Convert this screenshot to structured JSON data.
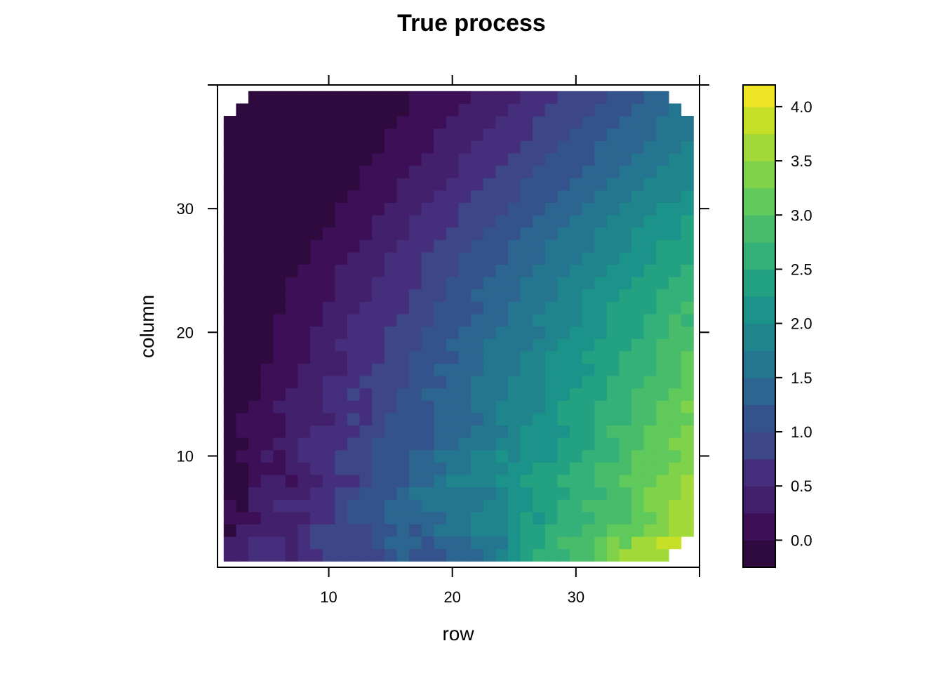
{
  "chart_data": {
    "type": "heatmap",
    "title": "True process",
    "xlabel": "row",
    "ylabel": "column",
    "xlim": [
      1,
      40
    ],
    "ylim": [
      1,
      40
    ],
    "x_ticks": [
      10,
      20,
      30,
      40
    ],
    "x_tick_labels": [
      "10",
      "20",
      "30",
      ""
    ],
    "y_ticks": [
      10,
      20,
      30,
      40
    ],
    "y_tick_labels": [
      "10",
      "20",
      "30",
      ""
    ],
    "grid": false,
    "colorbar": {
      "position": "right",
      "range": [
        -0.25,
        4.2
      ],
      "levels": [
        -0.25,
        0.0,
        0.25,
        0.5,
        0.75,
        1.0,
        1.25,
        1.5,
        1.75,
        2.0,
        2.25,
        2.5,
        2.75,
        3.0,
        3.25,
        3.5,
        3.75,
        4.0,
        4.2
      ],
      "colors": [
        "#2f0a3f",
        "#3c0f57",
        "#43206b",
        "#452f7c",
        "#3d4788",
        "#34528c",
        "#2c658f",
        "#24758f",
        "#1f848c",
        "#1b938a",
        "#23a282",
        "#34b079",
        "#49bc6b",
        "#5fc95b",
        "#80d24a",
        "#a1da38",
        "#c6df27",
        "#f0e627"
      ],
      "ticks": [
        0.0,
        0.5,
        1.0,
        1.5,
        2.0,
        2.5,
        3.0,
        3.5,
        4.0
      ],
      "tick_labels": [
        "0.0",
        "0.5",
        "1.0",
        "1.5",
        "2.0",
        "2.5",
        "3.0",
        "3.5",
        "4.0"
      ]
    },
    "grid_data": {
      "nx": 38,
      "ny": 39,
      "x_start": 2,
      "y_start": 2,
      "rows": [
        "0.45,0.46,0.54,0.60,0.52,0.49,0.66,0.72,0.86,0.85,0.95,0.85,0.97,1.14,1.31,1.16,1.22,1.24,1.29,1.33,1.45,1.58,1.75,2.12,2.26,2.50,2.65,2.67,2.77,2.96,3.20,3.29,3.54,3.51,3.65,3.71,,",
        "0.47,0.42,0.58,0.54,0.56,0.43,0.69,0.82,0.83,0.93,0.79,0.95,1.09,1.25,1.36,1.45,1.24,1.29,1.42,1.48,1.65,1.54,1.69,2.11,2.31,2.39,2.68,2.80,2.92,2.91,3.01,3.28,3.18,3.54,3.67,3.75,3.84,",
        "-0.12,0.27,0.45,0.45,0.40,0.41,0.62,0.76,0.84,0.86,0.97,0.99,1.07,1.24,1.38,1.24,1.45,1.57,1.53,1.71,1.79,1.82,1.85,2.05,2.25,2.31,2.50,2.58,2.70,2.81,2.84,3.01,3.15,3.13,3.26,3.44,3.66,3.58",
        "0.22,0.20,0.23,0.25,0.27,0.25,0.43,0.57,0.74,0.79,1.00,1.12,1.19,1.41,1.43,1.40,1.37,1.48,1.59,1.71,1.77,1.92,1.91,2.16,2.27,2.21,2.28,2.54,2.55,2.62,2.86,2.83,2.95,3.08,3.20,3.34,3.55,3.64",
        "0.01,-0.02,0.31,0.38,0.52,0.53,0.53,0.64,0.71,0.95,1.09,1.02,1.22,1.25,1.44,1.41,1.58,1.63,1.67,1.70,1.72,1.96,1.93,2.02,2.16,2.33,2.38,2.51,2.57,2.77,2.87,2.92,2.89,3.19,3.35,3.46,3.56,3.71",
        "-0.10,-0.11,0.29,0.31,0.45,0.39,0.48,0.73,0.71,0.77,0.93,1.04,1.11,1.15,1.38,1.51,1.58,1.59,1.67,1.73,1.74,1.72,1.96,2.10,2.21,2.39,2.35,2.34,2.52,2.66,2.69,2.77,2.98,3.11,3.27,3.31,3.37,3.66",
        "-0.15,-0.06,0.11,0.29,0.34,0.21,0.38,0.41,0.55,0.70,0.70,0.95,1.03,1.12,1.19,1.28,1.33,1.60,1.75,1.81,1.75,1.85,2.05,2.06,2.34,2.29,2.45,2.51,2.67,2.63,2.77,2.92,3.06,3.03,3.21,3.33,3.26,3.61",
        "-0.24,-0.08,0.09,0.21,0.22,0.30,0.33,0.58,0.62,0.83,0.86,0.95,1.04,1.09,1.22,1.26,1.41,1.40,1.69,1.66,1.79,1.90,1.87,2.01,2.09,2.31,2.36,2.48,2.51,2.56,2.78,2.79,2.84,3.04,3.16,3.10,3.29,3.47",
        "-0.16,0.06,0.13,0.27,0.24,0.35,0.51,0.53,0.62,0.76,0.92,0.97,1.06,1.14,1.11,1.31,1.40,1.60,1.51,1.54,1.75,1.86,2.02,1.96,2.01,2.13,2.20,2.32,2.46,2.61,2.65,2.74,2.90,3.00,3.09,3.22,3.13,3.42",
        "-0.13,-0.04,0.02,0.13,0.35,0.37,0.53,0.61,0.61,0.70,0.86,0.94,1.12,1.09,1.12,1.21,1.23,1.34,1.37,1.53,1.66,1.69,1.93,1.96,2.11,2.09,2.17,2.33,2.42,2.49,2.59,2.62,2.90,2.95,3.04,3.17,3.28,3.41",
        "-0.06,0.06,0.00,0.13,0.20,0.30,0.39,0.54,0.58,0.59,0.72,0.84,0.92,1.03,1.14,1.18,1.15,1.30,1.43,1.41,1.53,1.62,1.74,1.94,2.00,2.04,2.07,2.22,2.37,2.47,2.54,2.75,2.84,2.86,3.01,3.04,3.16,3.27",
        "-0.12,0.05,0.17,0.06,0.18,0.25,0.28,0.40,0.46,0.65,0.78,0.73,0.93,1.03,1.09,1.21,1.21,1.38,1.45,1.37,1.45,1.64,1.75,1.90,1.90,2.07,2.22,2.27,2.35,2.42,2.52,2.62,2.72,2.86,2.97,3.01,3.13,3.22",
        "-0.14,-0.08,0.08,0.16,0.28,0.31,0.30,0.44,0.63,0.61,0.72,0.74,0.83,0.91,1.08,1.07,1.17,1.27,1.35,1.45,1.59,1.61,1.77,1.77,1.93,1.97,2.10,2.29,2.27,2.45,2.61,2.55,2.66,2.82,2.90,3.01,3.18,3.31",
        "-0.21,-0.11,-0.04,0.09,0.08,0.26,0.42,0.42,0.56,0.65,0.76,0.74,0.87,0.95,1.03,1.05,1.25,1.29,1.33,1.48,1.56,1.59,1.65,1.80,1.87,1.97,2.06,2.09,2.31,2.32,2.36,2.54,2.59,2.78,2.87,2.96,3.03,3.16",
        "-0.12,-0.11,-0.01,0.06,0.06,0.24,0.30,0.33,0.52,0.58,0.70,0.76,0.85,0.95,0.95,1.01,1.18,1.24,1.26,1.31,1.56,1.64,1.71,1.75,1.84,1.97,2.05,2.11,2.20,2.31,2.44,2.51,2.62,2.64,2.79,2.87,2.98,3.06",
        "-0.22,-0.18,-0.06,0.04,0.06,0.14,0.31,0.32,0.38,0.49,0.61,0.69,0.76,0.90,0.93,1.02,1.13,1.29,1.27,1.33,1.46,1.53,1.67,1.72,1.79,1.92,2.08,2.12,2.20,2.21,2.37,2.48,2.64,2.63,2.68,2.84,2.89,3.01",
        "-0.18,-0.17,-0.01,-0.05,0.06,0.07,0.22,0.40,0.43,0.48,0.56,0.65,0.73,0.77,0.91,1.03,1.07,1.10,1.22,1.35,1.42,1.58,1.62,1.70,1.85,1.84,2.00,2.07,2.15,2.33,2.32,2.48,2.50,2.63,2.73,2.75,2.94,3.02",
        "-0.24,-0.21,-0.10,-0.06,0.00,0.20,0.21,0.27,0.37,0.51,0.58,0.56,0.74,0.78,0.84,0.97,1.00,1.16,1.26,1.25,1.40,1.50,1.57,1.62,1.69,1.87,1.91,2.07,2.15,2.17,2.28,2.40,2.48,2.51,2.67,2.77,2.85,2.93",
        "-0.20,-0.19,-0.16,-0.05,0.00,0.03,0.20,0.27,0.38,0.34,0.53,0.52,0.62,0.77,0.85,0.90,1.02,1.04,1.15,1.28,1.34,1.37,1.55,1.66,1.72,1.74,1.85,1.95,2.04,2.13,2.17,2.38,2.42,2.49,2.51,2.65,2.77,2.90",
        "-0.21,-0.22,-0.09,-0.08,0.01,0.09,0.13,0.23,0.37,0.47,0.51,0.53,0.61,0.70,0.83,0.87,0.96,1.01,1.12,1.20,1.27,1.43,1.49,1.64,1.68,1.76,1.81,1.96,1.99,2.08,2.23,2.28,2.31,2.41,2.59,2.63,2.76,2.73",
        "-0.25,-0.23,-0.15,-0.11,-0.02,0.08,0.17,0.19,0.28,0.38,0.41,0.50,0.62,0.73,0.74,0.86,0.88,1.04,1.05,1.13,1.24,1.31,1.44,1.55,1.58,1.70,1.79,1.91,1.93,2.08,2.11,2.27,2.28,2.37,2.48,2.62,2.64,2.79",
        "-0.23,-0.24,-0.20,-0.15,-0.06,0.06,0.07,0.22,0.22,0.29,0.35,0.47,0.56,0.68,0.74,0.83,0.94,0.91,1.03,1.18,1.26,1.33,1.37,1.43,1.61,1.63,1.74,1.81,1.92,2.03,2.08,2.17,2.26,2.36,2.38,2.54,2.57,2.70",
        "-0.25,-0.25,-0.22,-0.10,-0.09,0.02,0.06,0.12,0.23,0.27,0.40,0.46,0.55,0.59,0.67,0.71,0.82,0.96,1.02,1.07,1.17,1.29,1.32,1.46,1.52,1.57,1.71,1.79,1.80,1.91,2.03,2.10,2.16,2.30,2.40,2.45,2.52,2.66",
        "-0.25,-0.25,-0.23,-0.17,-0.14,-0.08,0.06,0.14,0.19,0.30,0.34,0.41,0.47,0.57,0.62,0.73,0.78,0.83,0.93,1.04,1.11,1.23,1.26,1.40,1.43,1.56,1.66,1.69,1.79,1.86,1.98,2.05,2.16,2.22,2.29,2.38,2.48,2.57",
        "-0.25,-0.25,-0.25,-0.18,-0.15,-0.08,-0.02,0.03,0.10,0.21,0.28,0.37,0.44,0.53,0.61,0.68,0.76,0.83,0.92,1.01,1.07,1.15,1.23,1.29,1.42,1.48,1.58,1.61,1.72,1.82,1.89,1.95,2.05,2.15,2.21,2.34,2.38,2.46",
        "-0.25,-0.25,-0.25,-0.23,-0.18,-0.15,-0.05,0.00,0.09,0.15,0.24,0.29,0.40,0.48,0.52,0.60,0.69,0.77,0.86,0.95,1.03,1.09,1.17,1.25,1.35,1.42,1.51,1.59,1.67,1.74,1.82,1.92,1.99,2.07,2.14,2.25,2.31,2.40",
        "-0.25,-0.25,-0.25,-0.25,-0.21,-0.16,-0.11,-0.04,0.02,0.09,0.19,0.24,0.32,0.41,0.47,0.56,0.63,0.72,0.80,0.89,0.95,1.02,1.11,1.20,1.29,1.36,1.44,1.51,1.59,1.68,1.76,1.84,1.92,2.00,2.08,2.17,2.24,2.32",
        "-0.25,-0.25,-0.25,-0.25,-0.23,-0.19,-0.13,-0.08,-0.01,0.06,0.12,0.20,0.28,0.35,0.42,0.50,0.58,0.66,0.74,0.82,0.90,0.97,1.05,1.13,1.21,1.29,1.37,1.45,1.53,1.61,1.69,1.77,1.85,1.93,2.01,2.09,2.17,2.25",
        "-0.25,-0.25,-0.25,-0.25,-0.25,-0.22,-0.17,-0.12,-0.06,0.01,0.07,0.14,0.22,0.29,0.37,0.44,0.52,0.60,0.67,0.75,0.83,0.91,0.98,1.06,1.14,1.22,1.29,1.37,1.45,1.53,1.61,1.68,1.76,1.84,1.92,2.00,2.07,2.15",
        "-0.25,-0.25,-0.25,-0.25,-0.25,-0.24,-0.20,-0.15,-0.10,-0.04,0.03,0.09,0.16,0.23,0.31,0.38,0.46,0.53,0.61,0.68,0.76,0.84,0.91,0.99,1.07,1.14,1.22,1.30,1.37,1.45,1.53,1.60,1.68,1.76,1.84,1.91,1.99,2.07",
        "-0.25,-0.25,-0.25,-0.25,-0.25,-0.25,-0.23,-0.19,-0.14,-0.08,-0.02,0.04,0.11,0.18,0.25,0.32,0.40,0.47,0.55,0.62,0.70,0.77,0.85,0.92,1.00,1.08,1.15,1.23,1.30,1.38,1.46,1.53,1.61,1.69,1.76,1.84,1.92,1.99",
        "-0.25,-0.25,-0.25,-0.25,-0.25,-0.25,-0.25,-0.22,-0.17,-0.12,-0.06,0.00,0.06,0.13,0.20,0.27,0.34,0.41,0.49,0.56,0.63,0.71,0.78,0.86,0.93,1.01,1.08,1.16,1.24,1.31,1.39,1.46,1.54,1.62,1.69,1.77,1.85,1.92",
        "-0.25,-0.25,-0.25,-0.25,-0.25,-0.25,-0.25,-0.24,-0.20,-0.15,-0.10,-0.04,0.02,0.08,0.15,0.22,0.29,0.36,0.43,0.50,0.57,0.65,0.72,0.79,0.87,0.94,1.02,1.09,1.17,1.24,1.32,1.39,1.47,1.55,1.62,1.70,1.78,1.85",
        "-0.25,-0.25,-0.25,-0.25,-0.25,-0.25,-0.25,-0.25,-0.23,-0.19,-0.14,-0.08,-0.02,0.04,0.10,0.17,0.23,0.30,0.37,0.44,0.51,0.58,0.66,0.73,0.80,0.88,0.95,1.03,1.10,1.18,1.25,1.33,1.40,1.48,1.55,1.63,1.71,1.78",
        "-0.25,-0.25,-0.25,-0.25,-0.25,-0.25,-0.25,-0.25,-0.25,-0.22,-0.17,-0.12,-0.06,0.00,0.06,0.12,0.18,0.25,0.32,0.39,0.46,0.53,0.60,0.67,0.74,0.81,0.89,0.96,1.04,1.11,1.19,1.26,1.34,1.41,1.49,1.56,1.64,1.72",
        "-0.25,-0.25,-0.25,-0.25,-0.25,-0.25,-0.25,-0.25,-0.25,-0.24,-0.20,-0.15,-0.10,-0.04,0.02,0.08,0.14,0.20,0.27,0.33,0.40,0.47,0.54,0.61,0.68,0.75,0.82,0.90,0.97,1.04,1.12,1.19,1.27,1.34,1.42,1.50,1.57,1.65",
        ",-0.25,-0.25,-0.25,-0.25,-0.25,-0.25,-0.25,-0.25,-0.25,-0.23,-0.18,-0.13,-0.08,-0.02,0.03,0.09,0.15,0.21,0.28,0.34,0.41,0.48,0.55,0.62,0.69,0.76,0.83,0.90,0.98,1.05,1.12,1.20,1.27,1.35,1.42,1.50,",
        ",,-0.25,-0.25,-0.25,-0.25,-0.25,-0.25,-0.25,-0.25,-0.25,-0.21,-0.16,-0.11,-0.06,0.00,0.05,0.11,0.17,0.23,0.29,0.36,0.42,0.49,0.56,0.63,0.70,0.77,0.84,0.91,0.98,1.05,1.13,1.20,1.28,1.35,,",
        ",,,,,,,,,,,,,,,,,,,,,,,,,,,,,,,,,,,,,"
      ]
    }
  }
}
